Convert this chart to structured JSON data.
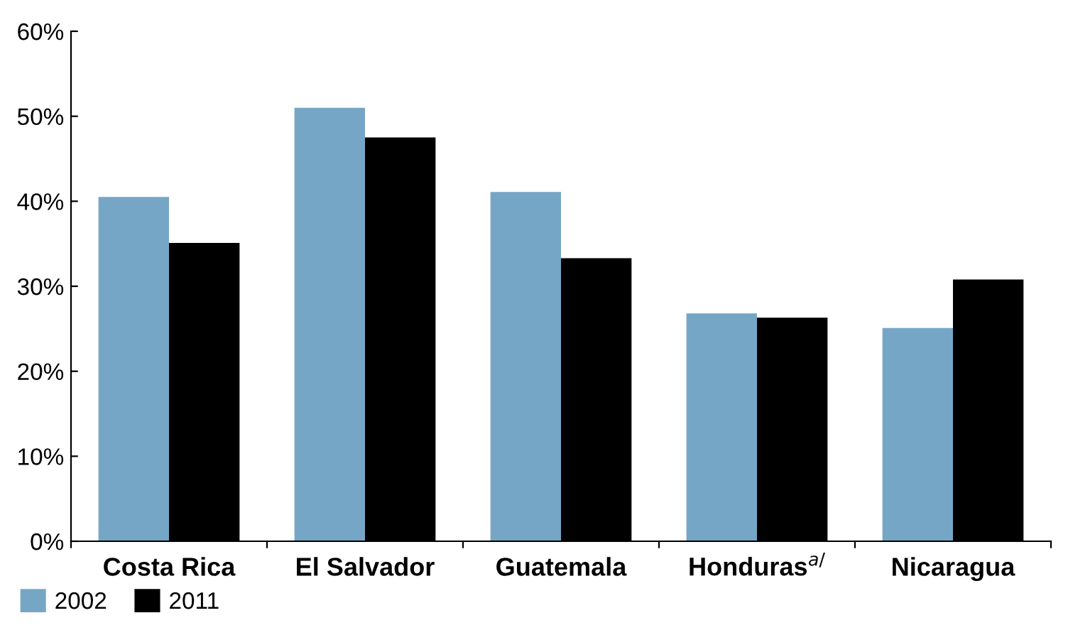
{
  "chart_data": {
    "type": "bar",
    "categories": [
      "Costa Rica",
      "El Salvador",
      "Guatemala",
      "Honduras$^{a/}$",
      "Nicaragua"
    ],
    "series": [
      {
        "name": "2002",
        "color": "#76a6c5",
        "values": [
          40.5,
          51.0,
          41.1,
          26.8,
          25.1
        ]
      },
      {
        "name": "2011",
        "color": "#000000",
        "values": [
          35.1,
          47.5,
          33.3,
          26.3,
          30.8
        ]
      }
    ],
    "ylim": [
      0,
      60
    ],
    "yticks": [
      {
        "value": 0,
        "label": "0%"
      },
      {
        "value": 10,
        "label": "10%"
      },
      {
        "value": 20,
        "label": "20%"
      },
      {
        "value": 30,
        "label": "30%"
      },
      {
        "value": 40,
        "label": "40%"
      },
      {
        "value": 50,
        "label": "50%"
      },
      {
        "value": 60,
        "label": "60%"
      }
    ],
    "grid": false,
    "legend": "bottom left"
  }
}
